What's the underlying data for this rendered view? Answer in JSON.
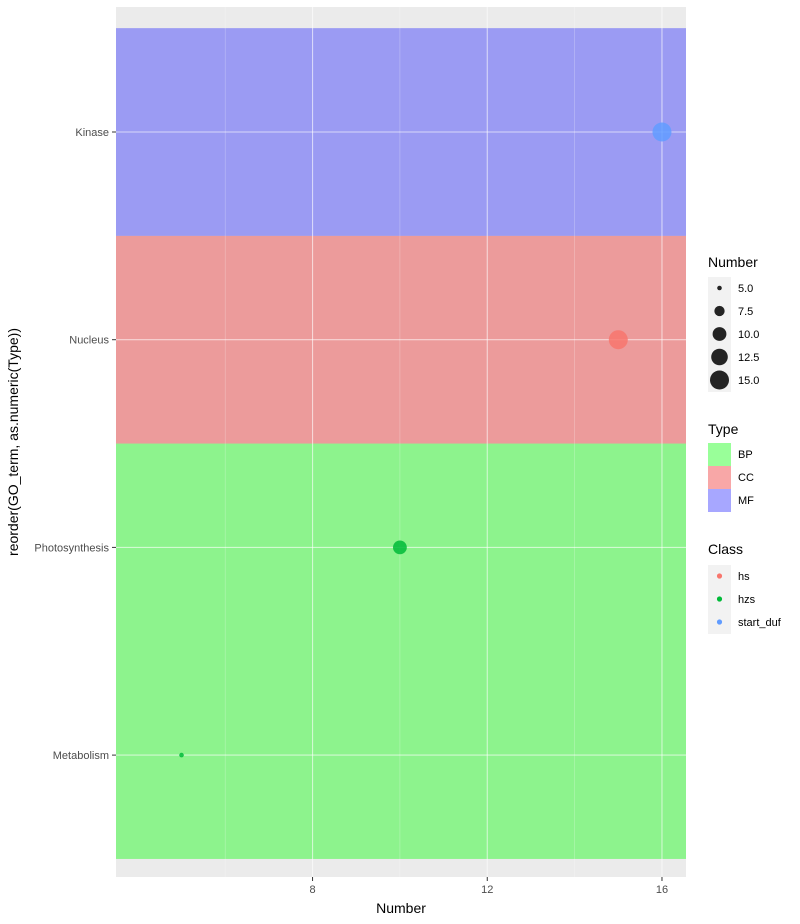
{
  "chart_data": {
    "type": "scatter",
    "xlabel": "Number",
    "ylabel": "reorder(GO_term, as.numeric(Type))",
    "xlim": [
      3.5,
      16.55
    ],
    "x_ticks": [
      8,
      12,
      16
    ],
    "x_minor_ticks": [
      6,
      10,
      14
    ],
    "categories": [
      "Metabolism",
      "Photosynthesis",
      "Nucleus",
      "Kinase"
    ],
    "bands": [
      {
        "type": "BP",
        "from": "Metabolism",
        "to": "Photosynthesis"
      },
      {
        "type": "CC",
        "from": "Nucleus",
        "to": "Nucleus"
      },
      {
        "type": "MF",
        "from": "Kinase",
        "to": "Kinase"
      }
    ],
    "points": [
      {
        "term": "Kinase",
        "number": 16,
        "class": "start_duf"
      },
      {
        "term": "Nucleus",
        "number": 15,
        "class": "hs"
      },
      {
        "term": "Photosynthesis",
        "number": 10,
        "class": "hzs"
      },
      {
        "term": "Metabolism",
        "number": 5,
        "class": "hzs"
      }
    ],
    "legends": {
      "size": {
        "title": "Number",
        "values": [
          5.0,
          7.5,
          10.0,
          12.5,
          15.0
        ],
        "labels": [
          "5.0",
          "7.5",
          "10.0",
          "12.5",
          "15.0"
        ]
      },
      "type": {
        "title": "Type",
        "entries": [
          {
            "label": "BP",
            "color": "#00ff00"
          },
          {
            "label": "CC",
            "color": "#ee2222"
          },
          {
            "label": "MF",
            "color": "#2222ff"
          }
        ]
      },
      "class": {
        "title": "Class",
        "entries": [
          {
            "label": "hs",
            "color": "#F8766D"
          },
          {
            "label": "hzs",
            "color": "#00BA38"
          },
          {
            "label": "start_duf",
            "color": "#619CFF"
          }
        ]
      }
    }
  }
}
